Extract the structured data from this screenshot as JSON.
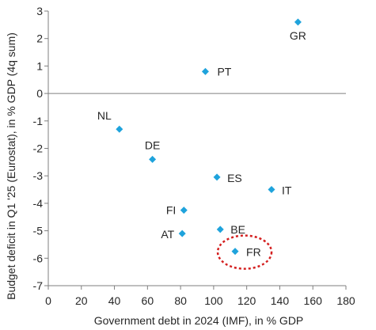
{
  "chart_data": {
    "type": "scatter",
    "title": "",
    "xlabel": "Government debt in 2024 (IMF), in % GDP",
    "ylabel": "Budget deficit in Q1 '25 (Eurostat), in % GDP (4q sum)",
    "xlim": [
      0,
      180
    ],
    "ylim": [
      -7,
      3
    ],
    "xticks": [
      0,
      20,
      40,
      60,
      80,
      100,
      120,
      140,
      160,
      180
    ],
    "yticks": [
      3,
      2,
      1,
      0,
      -1,
      -2,
      -3,
      -4,
      -5,
      -6,
      -7
    ],
    "grid": false,
    "marker_color": "#1fa3dc",
    "highlight_color": "#d42020",
    "highlight": "FR",
    "points": [
      {
        "label": "GR",
        "x": 151,
        "y": 2.6
      },
      {
        "label": "PT",
        "x": 95,
        "y": 0.8
      },
      {
        "label": "NL",
        "x": 43,
        "y": -1.3
      },
      {
        "label": "DE",
        "x": 63,
        "y": -2.4
      },
      {
        "label": "ES",
        "x": 102,
        "y": -3.05
      },
      {
        "label": "IT",
        "x": 135,
        "y": -3.5
      },
      {
        "label": "FI",
        "x": 82,
        "y": -4.25
      },
      {
        "label": "BE",
        "x": 104,
        "y": -4.95
      },
      {
        "label": "AT",
        "x": 81,
        "y": -5.1
      },
      {
        "label": "FR",
        "x": 113,
        "y": -5.75
      }
    ]
  }
}
